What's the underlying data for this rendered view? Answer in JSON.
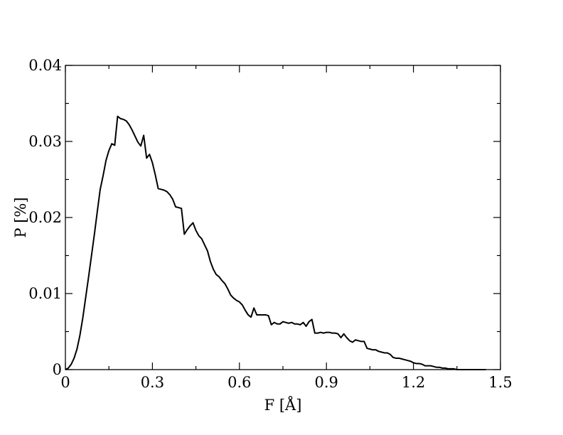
{
  "chart_data": {
    "type": "line",
    "title": "",
    "xlabel": "F [Å]",
    "ylabel": "P [%]",
    "xlim": [
      0,
      1.5
    ],
    "ylim": [
      0,
      0.04
    ],
    "xticks": [
      {
        "value": 0,
        "label": "0"
      },
      {
        "value": 0.3,
        "label": "0.3"
      },
      {
        "value": 0.6,
        "label": "0.6"
      },
      {
        "value": 0.9,
        "label": "0.9"
      },
      {
        "value": 1.2,
        "label": "1.2"
      },
      {
        "value": 1.5,
        "label": "1.5"
      }
    ],
    "yticks": [
      {
        "value": 0,
        "label": "0"
      },
      {
        "value": 0.01,
        "label": "0.01"
      },
      {
        "value": 0.02,
        "label": "0.02"
      },
      {
        "value": 0.03,
        "label": "0.03"
      },
      {
        "value": 0.04,
        "label": "0.04"
      }
    ],
    "grid": false,
    "line_color": "#000000",
    "series": [
      {
        "x": [
          0.0,
          0.01,
          0.02,
          0.03,
          0.04,
          0.05,
          0.06,
          0.07,
          0.08,
          0.09,
          0.1,
          0.11,
          0.12,
          0.13,
          0.14,
          0.15,
          0.16,
          0.17,
          0.18,
          0.19,
          0.2,
          0.21,
          0.22,
          0.23,
          0.24,
          0.25,
          0.26,
          0.27,
          0.28,
          0.29,
          0.3,
          0.31,
          0.32,
          0.33,
          0.34,
          0.35,
          0.36,
          0.37,
          0.38,
          0.39,
          0.4,
          0.41,
          0.42,
          0.43,
          0.44,
          0.45,
          0.46,
          0.47,
          0.48,
          0.49,
          0.5,
          0.51,
          0.52,
          0.53,
          0.54,
          0.55,
          0.56,
          0.57,
          0.58,
          0.59,
          0.6,
          0.61,
          0.62,
          0.63,
          0.64,
          0.65,
          0.66,
          0.67,
          0.68,
          0.69,
          0.7,
          0.71,
          0.72,
          0.73,
          0.74,
          0.75,
          0.76,
          0.77,
          0.78,
          0.79,
          0.8,
          0.81,
          0.82,
          0.83,
          0.84,
          0.85,
          0.86,
          0.87,
          0.88,
          0.89,
          0.9,
          0.91,
          0.92,
          0.93,
          0.94,
          0.95,
          0.96,
          0.97,
          0.98,
          0.99,
          1.0,
          1.01,
          1.02,
          1.03,
          1.04,
          1.05,
          1.06,
          1.07,
          1.08,
          1.09,
          1.1,
          1.11,
          1.12,
          1.13,
          1.14,
          1.15,
          1.16,
          1.17,
          1.18,
          1.19,
          1.2,
          1.21,
          1.22,
          1.23,
          1.24,
          1.25,
          1.26,
          1.27,
          1.28,
          1.29,
          1.3,
          1.31,
          1.32,
          1.33,
          1.34,
          1.35,
          1.36,
          1.37,
          1.38,
          1.39,
          1.4,
          1.41,
          1.42,
          1.43,
          1.44,
          1.45
        ],
        "y": [
          0.0,
          0.0002,
          0.0007,
          0.0015,
          0.0027,
          0.0045,
          0.0068,
          0.0095,
          0.0122,
          0.015,
          0.0178,
          0.0208,
          0.0237,
          0.0255,
          0.0275,
          0.0288,
          0.0297,
          0.0295,
          0.0333,
          0.033,
          0.0329,
          0.0327,
          0.0322,
          0.0315,
          0.0307,
          0.0299,
          0.0294,
          0.0308,
          0.0278,
          0.0283,
          0.0272,
          0.0256,
          0.0238,
          0.0237,
          0.0236,
          0.0234,
          0.023,
          0.0224,
          0.0214,
          0.0213,
          0.0212,
          0.0178,
          0.0184,
          0.0189,
          0.0193,
          0.0183,
          0.0176,
          0.0172,
          0.0164,
          0.0156,
          0.0142,
          0.0132,
          0.0125,
          0.0122,
          0.0117,
          0.0113,
          0.0106,
          0.0098,
          0.0094,
          0.0091,
          0.0089,
          0.0085,
          0.0078,
          0.0072,
          0.0069,
          0.0081,
          0.0072,
          0.0072,
          0.0072,
          0.0072,
          0.0071,
          0.0059,
          0.0062,
          0.006,
          0.006,
          0.0063,
          0.0062,
          0.0061,
          0.0062,
          0.006,
          0.006,
          0.0059,
          0.0062,
          0.0057,
          0.0063,
          0.0066,
          0.0048,
          0.0048,
          0.0049,
          0.0048,
          0.0049,
          0.0049,
          0.0048,
          0.0048,
          0.0047,
          0.0042,
          0.0047,
          0.0042,
          0.0038,
          0.0036,
          0.0039,
          0.0038,
          0.0037,
          0.0037,
          0.0028,
          0.0027,
          0.0026,
          0.0026,
          0.0024,
          0.0023,
          0.0022,
          0.0022,
          0.002,
          0.0016,
          0.0015,
          0.0015,
          0.0014,
          0.0013,
          0.0012,
          0.0011,
          0.0009,
          0.0008,
          0.0008,
          0.0007,
          0.0005,
          0.0005,
          0.0005,
          0.0004,
          0.0003,
          0.0003,
          0.0002,
          0.0002,
          0.0001,
          0.0001,
          0.0001,
          0.0,
          0.0,
          0.0,
          0.0,
          0.0,
          0.0,
          0.0,
          0.0,
          0.0,
          0.0,
          0.0
        ]
      }
    ]
  }
}
